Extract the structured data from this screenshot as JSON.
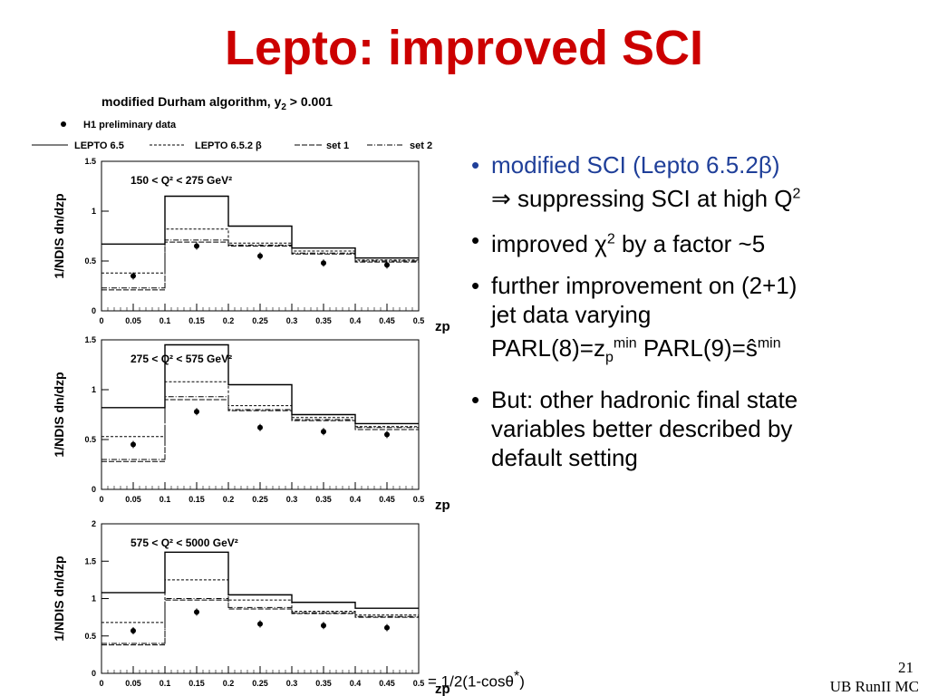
{
  "slide": {
    "title": "Lepto: improved SCI",
    "page_number": "21",
    "footer": "UB RunII MC",
    "footnote_pre": "= 1/2(1-cos",
    "footnote_theta": "θ",
    "footnote_star": "*",
    "footnote_post": ")"
  },
  "bullets": [
    {
      "parts": [
        "modified SCI (Lepto 6.5.2",
        "β",
        ")"
      ],
      "line2_arrow": "⇒",
      "line2": " suppressing SCI at high Q",
      "line2_sup": "2"
    },
    {
      "pre": "improved ",
      "chi": "χ",
      "sup": "2",
      "post": " by a factor ~5"
    },
    {
      "line1": "further improvement on (2+1)",
      "line2": "jet data varying",
      "l3a": "PARL(8)=z",
      "l3a_sub": "p",
      "l3a_sup": "min",
      "l3b": "  PARL(9)=ŝ",
      "l3b_sup": "min"
    },
    {
      "line1": "But: other hadronic final state",
      "line2": "variables better described by",
      "line3": "default setting"
    }
  ],
  "legend": {
    "header": "modified Durham algorithm, y",
    "header_sub": "2",
    "header_cut": " > 0.001",
    "data_label": "H1 preliminary data",
    "entries": [
      "LEPTO 6.5",
      "LEPTO 6.5.2 β",
      "set 1",
      "set 2"
    ]
  },
  "colors": {
    "title": "#cc0000",
    "bullet_highlight": "#1f3f99",
    "plot": "#000000"
  },
  "chart_data": [
    {
      "type": "histogram",
      "title": "150 < Q² < 275 GeV²",
      "xlabel": "zp",
      "ylabel": "1/NDIS dn/dzp",
      "xlim": [
        0,
        0.5
      ],
      "ylim": [
        0,
        1.5
      ],
      "xticks": [
        "0",
        "0.05",
        "0.1",
        "0.15",
        "0.2",
        "0.25",
        "0.3",
        "0.35",
        "0.4",
        "0.45",
        "0.5"
      ],
      "yticks": [
        "0",
        "0.5",
        "1",
        "1.5"
      ],
      "bin_edges": [
        0,
        0.1,
        0.2,
        0.3,
        0.4,
        0.5
      ],
      "data_points": {
        "x": [
          0.05,
          0.15,
          0.25,
          0.35,
          0.45
        ],
        "y": [
          0.35,
          0.65,
          0.55,
          0.48,
          0.46
        ]
      },
      "series": [
        {
          "name": "LEPTO 6.5",
          "values": [
            0.67,
            1.15,
            0.85,
            0.63,
            0.53
          ]
        },
        {
          "name": "LEPTO 6.5.2 β",
          "values": [
            0.38,
            0.82,
            0.68,
            0.6,
            0.51
          ]
        },
        {
          "name": "set 1",
          "values": [
            0.21,
            0.69,
            0.65,
            0.57,
            0.49
          ]
        },
        {
          "name": "set 2",
          "values": [
            0.23,
            0.71,
            0.66,
            0.58,
            0.5
          ]
        }
      ]
    },
    {
      "type": "histogram",
      "title": "275 < Q² < 575 GeV²",
      "xlabel": "zp",
      "ylabel": "1/NDIS dn/dzp",
      "xlim": [
        0,
        0.5
      ],
      "ylim": [
        0,
        1.5
      ],
      "xticks": [
        "0",
        "0.05",
        "0.1",
        "0.15",
        "0.2",
        "0.25",
        "0.3",
        "0.35",
        "0.4",
        "0.45",
        "0.5"
      ],
      "yticks": [
        "0",
        "0.5",
        "1",
        "1.5"
      ],
      "bin_edges": [
        0,
        0.1,
        0.2,
        0.3,
        0.4,
        0.5
      ],
      "data_points": {
        "x": [
          0.05,
          0.15,
          0.25,
          0.35,
          0.45
        ],
        "y": [
          0.45,
          0.78,
          0.62,
          0.58,
          0.55
        ]
      },
      "series": [
        {
          "name": "LEPTO 6.5",
          "values": [
            0.82,
            1.45,
            1.05,
            0.75,
            0.66
          ]
        },
        {
          "name": "LEPTO 6.5.2 β",
          "values": [
            0.53,
            1.08,
            0.84,
            0.72,
            0.63
          ]
        },
        {
          "name": "set 1",
          "values": [
            0.28,
            0.9,
            0.79,
            0.69,
            0.6
          ]
        },
        {
          "name": "set 2",
          "values": [
            0.3,
            0.93,
            0.8,
            0.7,
            0.62
          ]
        }
      ]
    },
    {
      "type": "histogram",
      "title": "575 < Q² < 5000 GeV²",
      "xlabel": "zp",
      "ylabel": "1/NDIS dn/dzp",
      "xlim": [
        0,
        0.5
      ],
      "ylim": [
        0,
        2
      ],
      "xticks": [
        "0",
        "0.05",
        "0.1",
        "0.15",
        "0.2",
        "0.25",
        "0.3",
        "0.35",
        "0.4",
        "0.45",
        "0.5"
      ],
      "yticks": [
        "0",
        "0.5",
        "1",
        "1.5",
        "2"
      ],
      "bin_edges": [
        0,
        0.1,
        0.2,
        0.3,
        0.4,
        0.5
      ],
      "data_points": {
        "x": [
          0.05,
          0.15,
          0.25,
          0.35,
          0.45
        ],
        "y": [
          0.57,
          0.82,
          0.66,
          0.64,
          0.61
        ]
      },
      "series": [
        {
          "name": "LEPTO 6.5",
          "values": [
            1.08,
            1.62,
            1.05,
            0.95,
            0.87
          ]
        },
        {
          "name": "LEPTO 6.5.2 β",
          "values": [
            0.68,
            1.25,
            0.98,
            0.83,
            0.78
          ]
        },
        {
          "name": "set 1",
          "values": [
            0.38,
            0.98,
            0.86,
            0.8,
            0.75
          ]
        },
        {
          "name": "set 2",
          "values": [
            0.4,
            1.0,
            0.88,
            0.81,
            0.76
          ]
        }
      ]
    }
  ]
}
